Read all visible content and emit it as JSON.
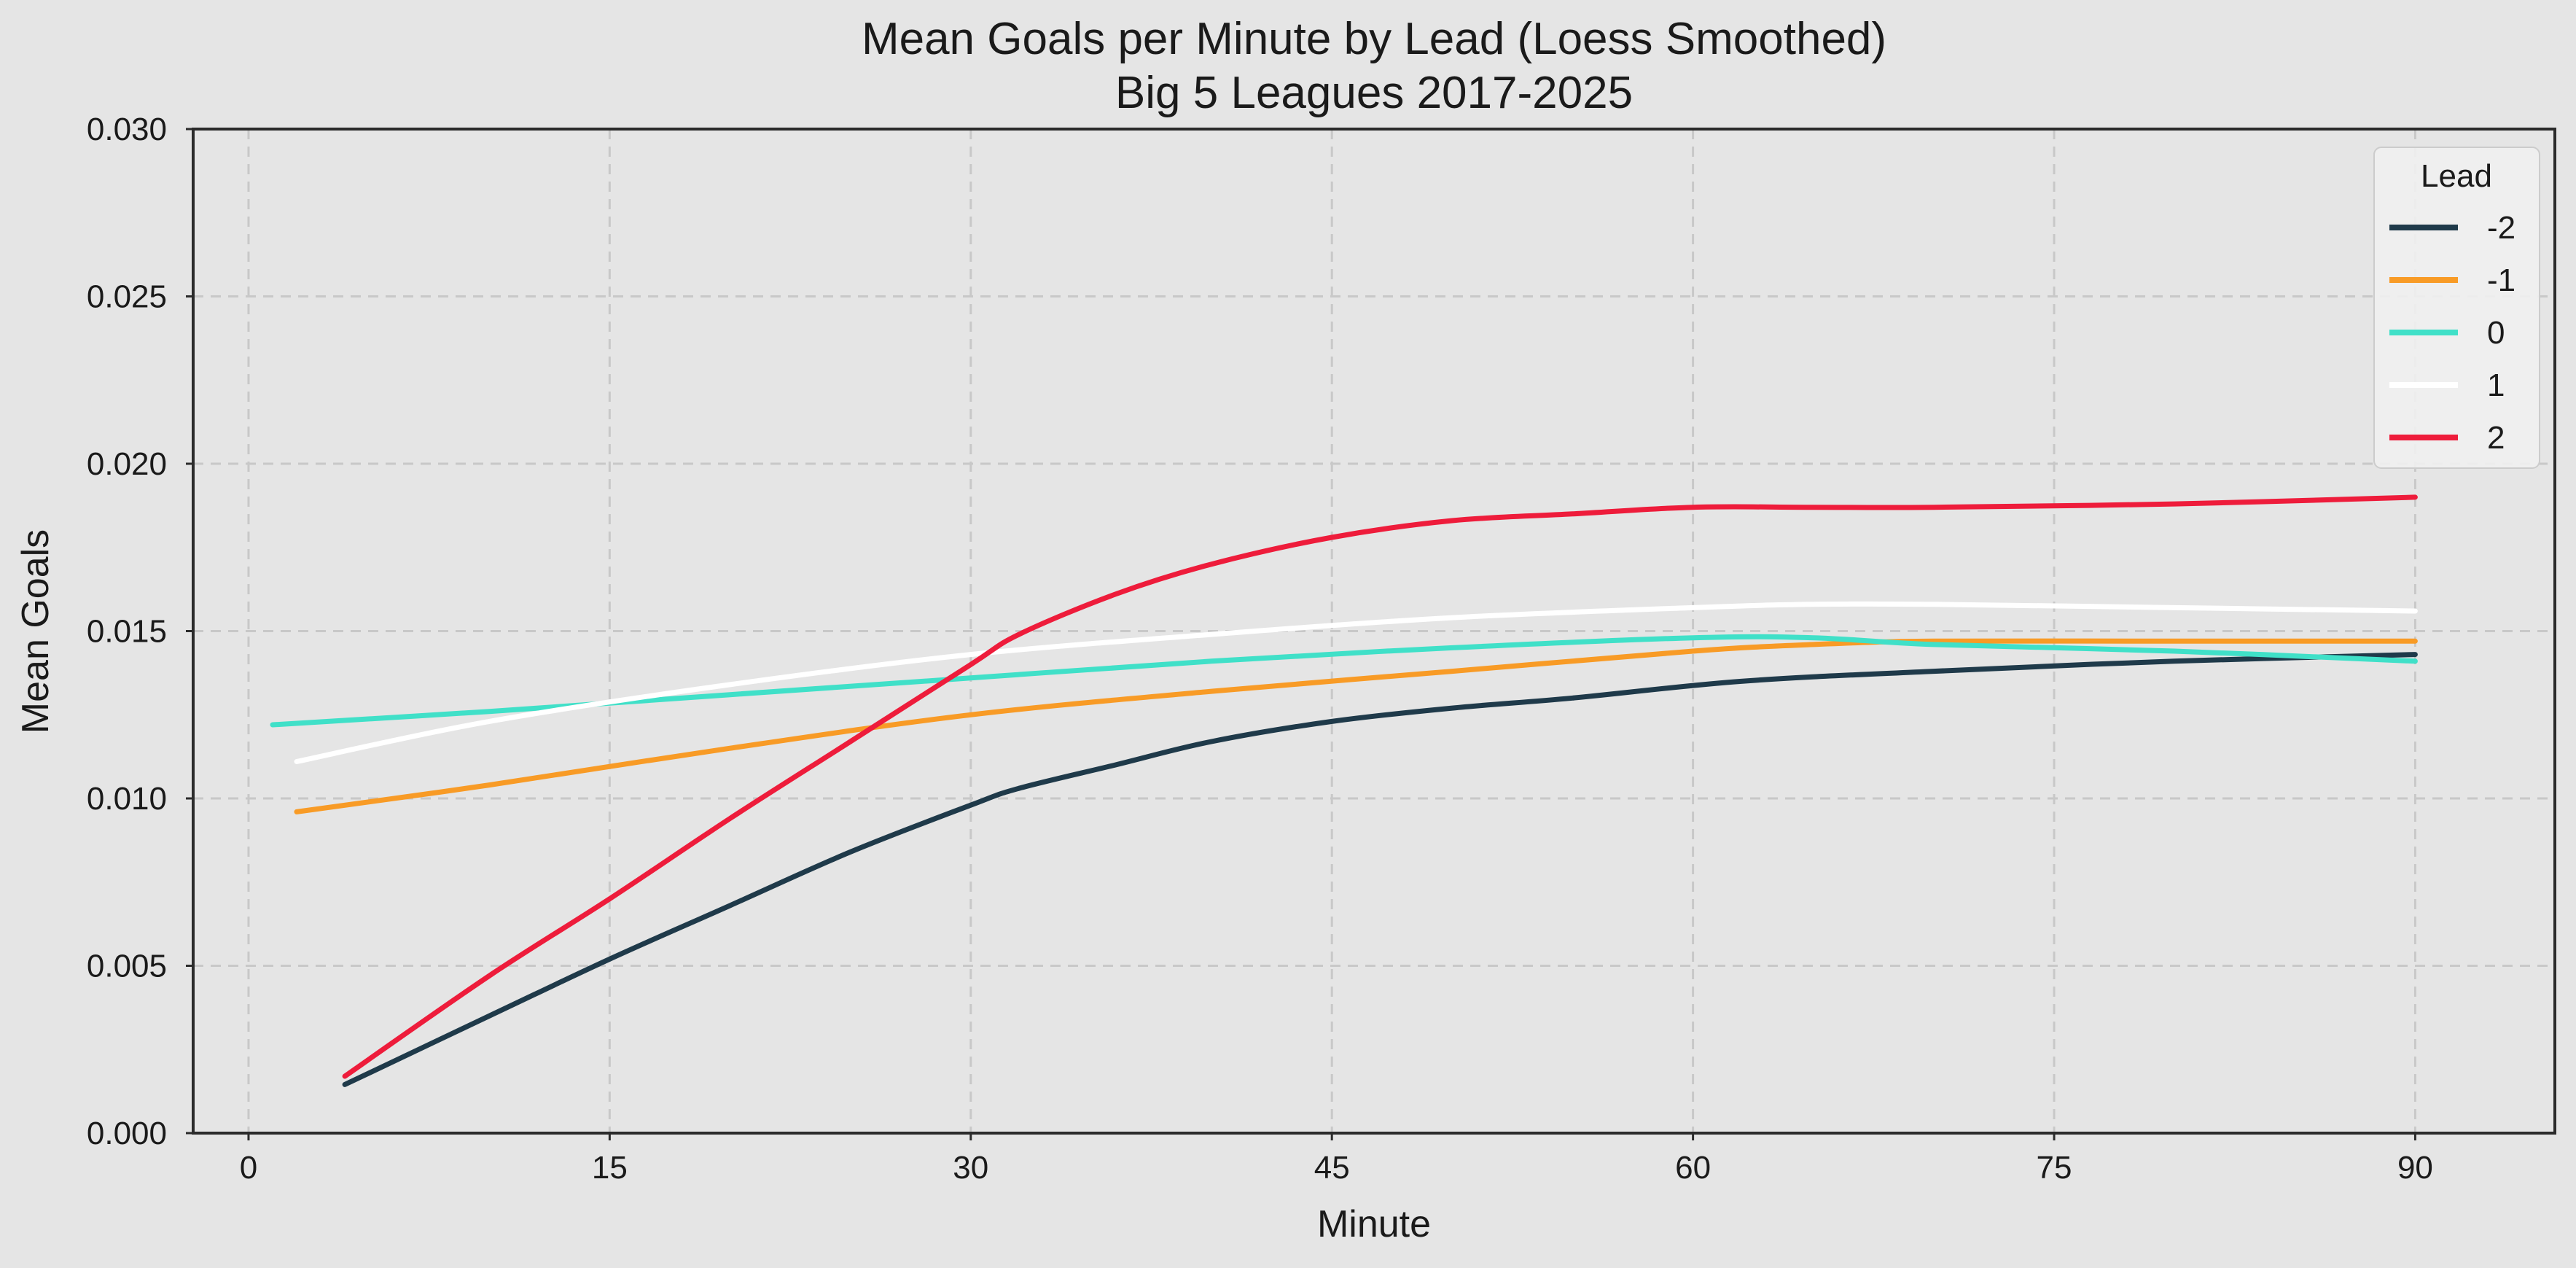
{
  "chart_data": {
    "type": "line",
    "title": "Mean Goals per Minute by Lead (Loess Smoothed)",
    "subtitle": "Big 5 Leagues 2017-2025",
    "xlabel": "Minute",
    "ylabel": "Mean Goals",
    "xlim": [
      -2.3,
      95.8
    ],
    "ylim": [
      0,
      0.03
    ],
    "xticks": [
      0,
      15,
      30,
      45,
      60,
      75,
      90
    ],
    "xtick_labels": [
      "0",
      "15",
      "30",
      "45",
      "60",
      "75",
      "90"
    ],
    "yticks": [
      0,
      0.005,
      0.01,
      0.015,
      0.02,
      0.025,
      0.03
    ],
    "ytick_labels": [
      "0.000",
      "0.005",
      "0.010",
      "0.015",
      "0.020",
      "0.025",
      "0.030"
    ],
    "grid": true,
    "legend": {
      "title": "Lead",
      "position": "top-right"
    },
    "series": [
      {
        "name": "-2",
        "color": "#1f3a4a",
        "points": [
          [
            4,
            0.00145
          ],
          [
            10,
            0.0035
          ],
          [
            15,
            0.0052
          ],
          [
            20,
            0.0068
          ],
          [
            25,
            0.0084
          ],
          [
            30,
            0.0098
          ],
          [
            32,
            0.0103
          ],
          [
            36,
            0.011
          ],
          [
            40,
            0.0117
          ],
          [
            45,
            0.0123
          ],
          [
            50,
            0.0127
          ],
          [
            55,
            0.013
          ],
          [
            62,
            0.0135
          ],
          [
            70,
            0.0138
          ],
          [
            80,
            0.0141
          ],
          [
            90,
            0.0143
          ]
        ]
      },
      {
        "name": "-1",
        "color": "#f89b26",
        "points": [
          [
            2,
            0.0096
          ],
          [
            10,
            0.0104
          ],
          [
            20,
            0.0115
          ],
          [
            30,
            0.0125
          ],
          [
            40,
            0.0132
          ],
          [
            50,
            0.0138
          ],
          [
            60,
            0.0144
          ],
          [
            65,
            0.0146
          ],
          [
            70,
            0.0147
          ],
          [
            80,
            0.0147
          ],
          [
            90,
            0.0147
          ]
        ]
      },
      {
        "name": "0",
        "color": "#40e0c8",
        "points": [
          [
            1,
            0.0122
          ],
          [
            10,
            0.0126
          ],
          [
            20,
            0.0131
          ],
          [
            30,
            0.0136
          ],
          [
            40,
            0.0141
          ],
          [
            50,
            0.0145
          ],
          [
            60,
            0.0148
          ],
          [
            65,
            0.0148
          ],
          [
            70,
            0.0146
          ],
          [
            80,
            0.0144
          ],
          [
            90,
            0.0141
          ]
        ]
      },
      {
        "name": "1",
        "color": "#ffffff",
        "points": [
          [
            2,
            0.0111
          ],
          [
            10,
            0.0123
          ],
          [
            20,
            0.0134
          ],
          [
            30,
            0.0143
          ],
          [
            40,
            0.0149
          ],
          [
            50,
            0.0154
          ],
          [
            60,
            0.0157
          ],
          [
            65,
            0.0158
          ],
          [
            70,
            0.0158
          ],
          [
            80,
            0.0157
          ],
          [
            90,
            0.0156
          ]
        ]
      },
      {
        "name": "2",
        "color": "#ee1c3b",
        "points": [
          [
            4,
            0.0017
          ],
          [
            10,
            0.0047
          ],
          [
            15,
            0.007
          ],
          [
            20,
            0.0094
          ],
          [
            25,
            0.0117
          ],
          [
            30,
            0.014
          ],
          [
            32,
            0.0149
          ],
          [
            36,
            0.0161
          ],
          [
            40,
            0.017
          ],
          [
            45,
            0.0178
          ],
          [
            50,
            0.0183
          ],
          [
            55,
            0.0185
          ],
          [
            60,
            0.0187
          ],
          [
            65,
            0.0187
          ],
          [
            70,
            0.0187
          ],
          [
            80,
            0.0188
          ],
          [
            90,
            0.019
          ]
        ]
      }
    ]
  }
}
